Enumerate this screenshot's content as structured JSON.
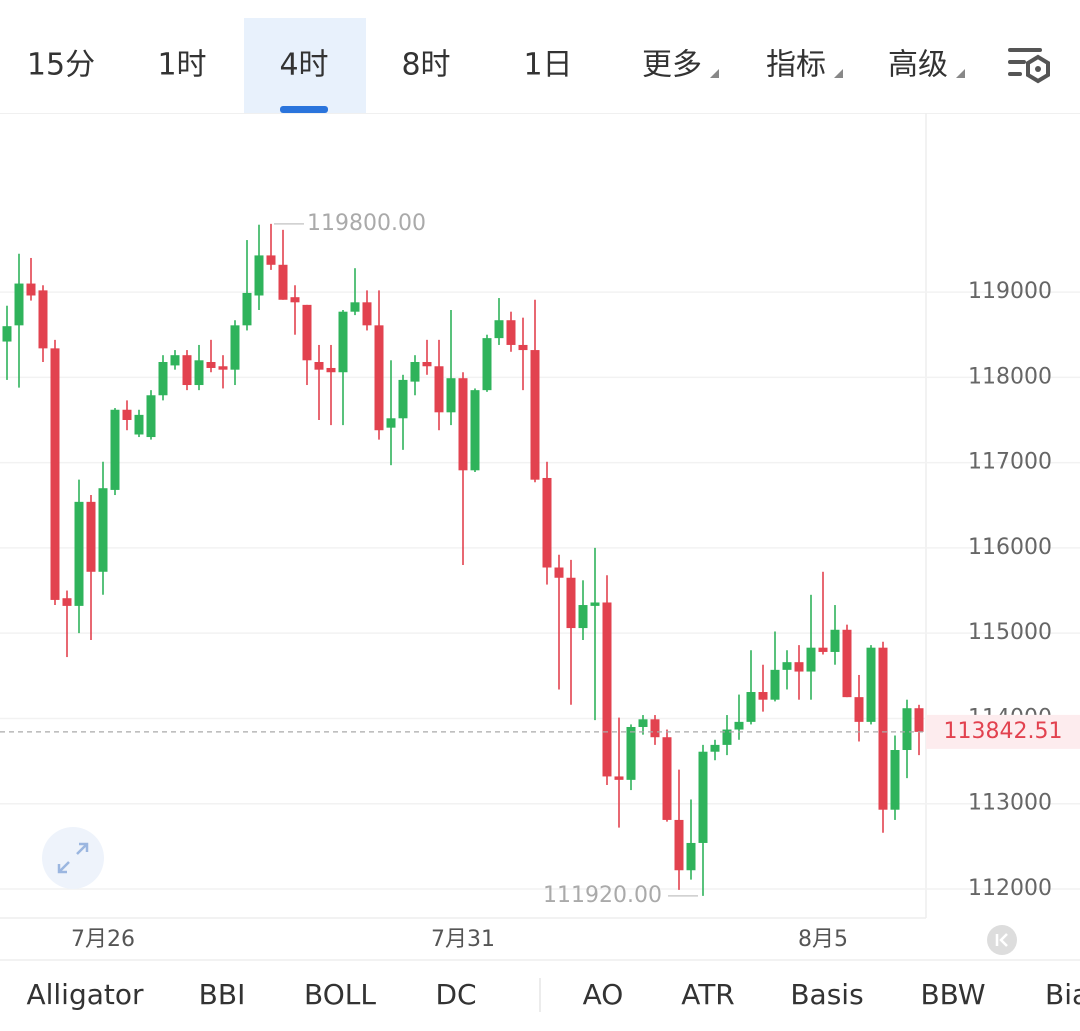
{
  "toolbar": {
    "tabs": [
      "15分",
      "1时",
      "4时",
      "8时",
      "1日",
      "更多",
      "指标",
      "高级"
    ],
    "selected": 2
  },
  "chart_data": {
    "type": "candlestick",
    "categories": [
      null,
      null,
      null,
      null,
      null,
      null,
      null,
      null,
      "7月26",
      null,
      null,
      null,
      null,
      null,
      null,
      null,
      null,
      null,
      null,
      null,
      null,
      null,
      null,
      null,
      null,
      null,
      null,
      null,
      null,
      null,
      null,
      null,
      null,
      null,
      null,
      null,
      null,
      null,
      "7月31",
      null,
      null,
      null,
      null,
      null,
      null,
      null,
      null,
      null,
      null,
      null,
      null,
      null,
      null,
      null,
      null,
      null,
      null,
      null,
      null,
      null,
      null,
      null,
      null,
      null,
      null,
      null,
      null,
      null,
      "8月5",
      null,
      null,
      null,
      null,
      null,
      null,
      null,
      null
    ],
    "open": [
      118420,
      118610,
      119100,
      119020,
      118340,
      115410,
      115320,
      116540,
      115720,
      116680,
      117620,
      117330,
      117300,
      117790,
      118140,
      118260,
      117910,
      118180,
      118130,
      118090,
      118610,
      118960,
      119430,
      119320,
      118940,
      118850,
      118180,
      118110,
      118060,
      118770,
      118880,
      118610,
      117410,
      117520,
      117950,
      118180,
      118130,
      117590,
      117990,
      116910,
      117850,
      118460,
      118670,
      118380,
      118320,
      116820,
      115770,
      115650,
      115060,
      115320,
      115360,
      113320,
      113280,
      113900,
      113990,
      113780,
      112810,
      112220,
      112540,
      113610,
      113690,
      113870,
      113960,
      114310,
      114220,
      114570,
      114660,
      114550,
      114830,
      114780,
      115040,
      114250,
      113960,
      114830,
      112930,
      113630,
      114120
    ],
    "high": [
      118840,
      119450,
      119400,
      119080,
      118440,
      115500,
      116800,
      116620,
      117010,
      117640,
      117730,
      117620,
      117850,
      118260,
      118320,
      118320,
      118380,
      118440,
      118260,
      118670,
      119610,
      119790,
      119800,
      119730,
      119080,
      118850,
      118380,
      118380,
      118790,
      119280,
      119020,
      119020,
      118200,
      118030,
      118260,
      118440,
      118440,
      118790,
      118060,
      117870,
      118500,
      118930,
      118770,
      118700,
      118910,
      117010,
      115920,
      115860,
      115620,
      116000,
      115680,
      114010,
      113930,
      114040,
      114040,
      113870,
      113400,
      113050,
      113690,
      113750,
      114040,
      114280,
      114800,
      114630,
      115020,
      114800,
      114860,
      115450,
      115720,
      115330,
      115100,
      114510,
      114860,
      114900,
      113800,
      114220,
      114160
    ],
    "low": [
      117970,
      117880,
      118900,
      118180,
      115330,
      114720,
      115000,
      114920,
      115450,
      116620,
      117380,
      117300,
      117270,
      117730,
      118090,
      117850,
      117850,
      118060,
      117870,
      117910,
      118550,
      118790,
      119260,
      118910,
      118500,
      117910,
      117500,
      117440,
      117440,
      118730,
      118550,
      117270,
      116970,
      117150,
      117790,
      118030,
      117380,
      117440,
      115800,
      116890,
      117830,
      118380,
      118300,
      117850,
      116770,
      115570,
      114340,
      114160,
      114920,
      113980,
      113220,
      112720,
      113160,
      113810,
      113690,
      112790,
      111990,
      112110,
      111920,
      113510,
      113570,
      113750,
      113930,
      114080,
      114200,
      114340,
      114220,
      114220,
      114750,
      114630,
      114250,
      113730,
      113930,
      112660,
      112810,
      113300,
      113570
    ],
    "close": [
      118600,
      119100,
      118960,
      118340,
      115390,
      115320,
      116540,
      115720,
      116700,
      117620,
      117500,
      117560,
      117790,
      118180,
      118260,
      117910,
      118200,
      118110,
      118090,
      118610,
      118990,
      119430,
      119320,
      118910,
      118880,
      118200,
      118090,
      118060,
      118770,
      118880,
      118610,
      117380,
      117520,
      117970,
      118180,
      118130,
      117590,
      117990,
      116910,
      117850,
      118460,
      118670,
      118380,
      118320,
      116800,
      115770,
      115650,
      115060,
      115330,
      115360,
      113320,
      113280,
      113900,
      113990,
      113780,
      112810,
      112220,
      112540,
      113610,
      113690,
      113870,
      113960,
      114310,
      114220,
      114570,
      114660,
      114550,
      114830,
      114780,
      115040,
      114250,
      113960,
      114830,
      112930,
      113630,
      114120,
      113842.51
    ],
    "up_color": "#2fb35b",
    "down_color": "#e2424f",
    "ylim": [
      111660,
      121100
    ],
    "yticks": [
      112000,
      113000,
      114000,
      115000,
      116000,
      117000,
      118000,
      119000
    ],
    "grid": true,
    "max_label": {
      "value": 119800,
      "label": "119800.00"
    },
    "min_label": {
      "value": 111920,
      "label": "111920.00"
    },
    "last_price": 113842.51
  },
  "indicators": [
    "Alligator",
    "BBI",
    "BOLL",
    "DC",
    "AO",
    "ATR",
    "Basis",
    "BBW",
    "Bias"
  ]
}
